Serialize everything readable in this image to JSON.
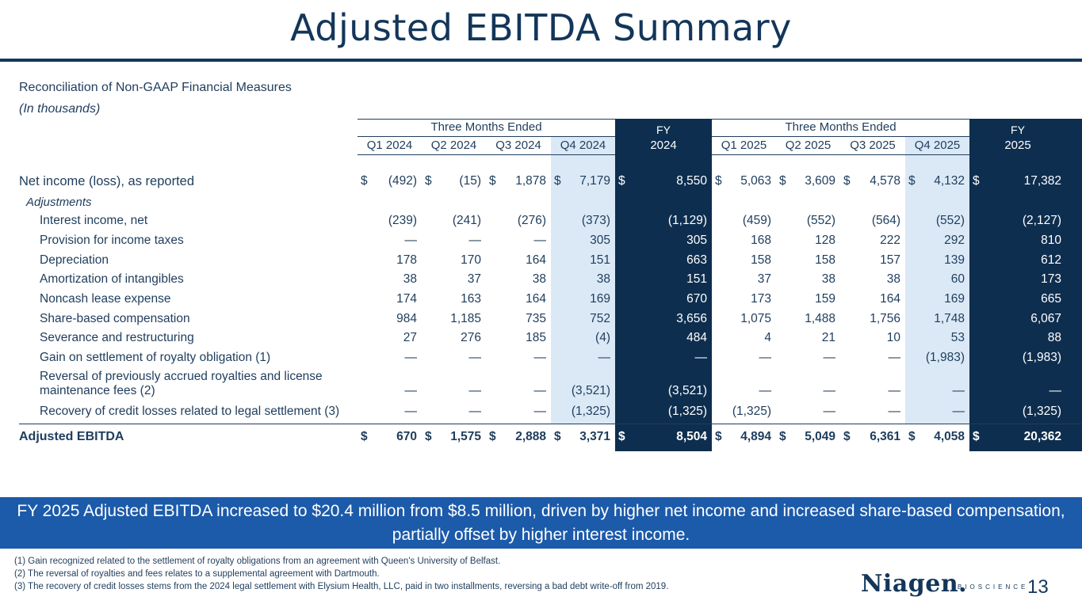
{
  "header": {
    "title": "Adjusted EBITDA Summary",
    "subtitle": "Reconciliation of Non-GAAP Financial Measures",
    "units": "(In thousands)"
  },
  "table": {
    "group_2024": "Three Months Ended",
    "group_2025": "Three Months Ended",
    "fy2024_line1": "FY",
    "fy2024_line2": "2024",
    "fy2025_line1": "FY",
    "fy2025_line2": "2025",
    "columns": [
      "Q1 2024",
      "Q2 2024",
      "Q3 2024",
      "Q4 2024",
      "FY 2024",
      "Q1 2025",
      "Q2 2025",
      "Q3 2025",
      "Q4 2025",
      "FY 2025"
    ],
    "dollar_sign": "$",
    "net_income": {
      "label": "Net income (loss), as reported",
      "values": [
        "(492)",
        "(15)",
        "1,878",
        "7,179",
        "8,550",
        "5,063",
        "3,609",
        "4,578",
        "4,132",
        "17,382"
      ]
    },
    "adjustments_label": "Adjustments",
    "rows": [
      {
        "label": "Interest income, net",
        "values": [
          "(239)",
          "(241)",
          "(276)",
          "(373)",
          "(1,129)",
          "(459)",
          "(552)",
          "(564)",
          "(552)",
          "(2,127)"
        ]
      },
      {
        "label": "Provision for income taxes",
        "values": [
          "—",
          "—",
          "—",
          "305",
          "305",
          "168",
          "128",
          "222",
          "292",
          "810"
        ]
      },
      {
        "label": "Depreciation",
        "values": [
          "178",
          "170",
          "164",
          "151",
          "663",
          "158",
          "158",
          "157",
          "139",
          "612"
        ]
      },
      {
        "label": "Amortization of intangibles",
        "values": [
          "38",
          "37",
          "38",
          "38",
          "151",
          "37",
          "38",
          "38",
          "60",
          "173"
        ]
      },
      {
        "label": "Noncash lease expense",
        "values": [
          "174",
          "163",
          "164",
          "169",
          "670",
          "173",
          "159",
          "164",
          "169",
          "665"
        ]
      },
      {
        "label": "Share-based compensation",
        "values": [
          "984",
          "1,185",
          "735",
          "752",
          "3,656",
          "1,075",
          "1,488",
          "1,756",
          "1,748",
          "6,067"
        ]
      },
      {
        "label": "Severance and restructuring",
        "values": [
          "27",
          "276",
          "185",
          "(4)",
          "484",
          "4",
          "21",
          "10",
          "53",
          "88"
        ]
      },
      {
        "label": "Gain on settlement of royalty obligation (1)",
        "values": [
          "—",
          "—",
          "—",
          "—",
          "—",
          "—",
          "—",
          "—",
          "(1,983)",
          "(1,983)"
        ]
      },
      {
        "label": "Reversal of previously accrued royalties and license maintenance fees (2)",
        "values": [
          "—",
          "—",
          "—",
          "(3,521)",
          "(3,521)",
          "—",
          "—",
          "—",
          "—",
          "—"
        ]
      },
      {
        "label": "Recovery of credit losses related to legal settlement (3)",
        "values": [
          "—",
          "—",
          "—",
          "(1,325)",
          "(1,325)",
          "(1,325)",
          "—",
          "—",
          "—",
          "(1,325)"
        ]
      }
    ],
    "adjusted_ebitda": {
      "label": "Adjusted EBITDA",
      "values": [
        "670",
        "1,575",
        "2,888",
        "3,371",
        "8,504",
        "4,894",
        "5,049",
        "6,361",
        "4,058",
        "20,362"
      ]
    }
  },
  "callout": "FY 2025 Adjusted EBITDA increased to $20.4 million from $8.5 million, driven by higher net income and increased share-based compensation, partially offset by higher interest income.",
  "footnotes": [
    "(1) Gain recognized related to the settlement of royalty obligations from an agreement with Queen's University of Belfast.",
    "(2) The reversal of royalties and fees relates to a supplemental agreement with Dartmouth.",
    "(3) The recovery of credit losses stems from the 2024 legal settlement with Elysium Health, LLC, paid in two installments, reversing a bad debt write-off from 2019."
  ],
  "brand": {
    "logo": "Niagen.",
    "logo_sub": "BIOSCIENCE",
    "page_number": "13"
  },
  "colors": {
    "navy": "#13365a",
    "fy_fill": "#0e2e4f",
    "q4_fill": "#dbe9f7",
    "callout_fill": "#1c5aaa"
  }
}
